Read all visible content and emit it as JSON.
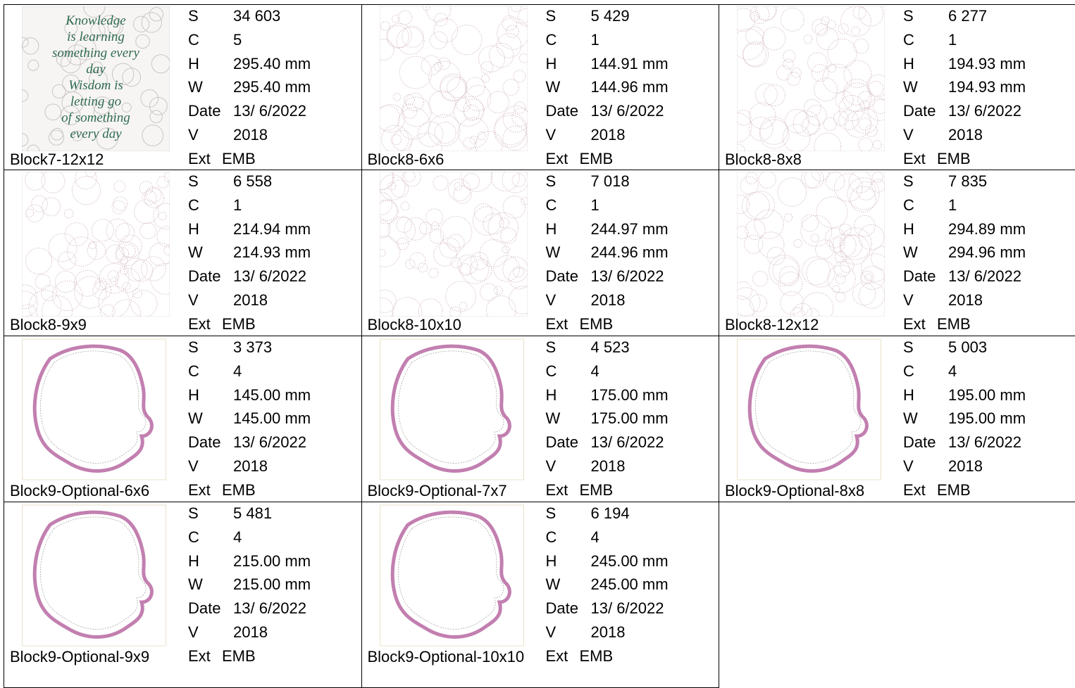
{
  "field_labels": [
    "S",
    "C",
    "H",
    "W",
    "Date",
    "V",
    "Ext"
  ],
  "cells": [
    {
      "name": "Block7-12x12",
      "thumbnail_text": [
        "Knowledge",
        "is learning",
        "something every",
        "day",
        "Wisdom is",
        "letting go",
        "of something",
        "every day"
      ],
      "values": [
        "34 603",
        "5",
        "295.40 mm",
        "295.40 mm",
        "13/ 6/2022",
        "2018",
        "EMB"
      ]
    },
    {
      "name": "Block8-6x6",
      "values": [
        "5 429",
        "1",
        "144.91 mm",
        "144.96 mm",
        "13/ 6/2022",
        "2018",
        "EMB"
      ]
    },
    {
      "name": "Block8-8x8",
      "values": [
        "6 277",
        "1",
        "194.93 mm",
        "194.93 mm",
        "13/ 6/2022",
        "2018",
        "EMB"
      ]
    },
    {
      "name": "Block8-9x9",
      "values": [
        "6 558",
        "1",
        "214.94 mm",
        "214.93 mm",
        "13/ 6/2022",
        "2018",
        "EMB"
      ]
    },
    {
      "name": "Block8-10x10",
      "values": [
        "7 018",
        "1",
        "244.97 mm",
        "244.96 mm",
        "13/ 6/2022",
        "2018",
        "EMB"
      ]
    },
    {
      "name": "Block8-12x12",
      "values": [
        "7 835",
        "1",
        "294.89 mm",
        "294.96 mm",
        "13/ 6/2022",
        "2018",
        "EMB"
      ]
    },
    {
      "name": "Block9-Optional-6x6",
      "values": [
        "3 373",
        "4",
        "145.00 mm",
        "145.00 mm",
        "13/ 6/2022",
        "2018",
        "EMB"
      ]
    },
    {
      "name": "Block9-Optional-7x7",
      "values": [
        "4 523",
        "4",
        "175.00 mm",
        "175.00 mm",
        "13/ 6/2022",
        "2018",
        "EMB"
      ]
    },
    {
      "name": "Block9-Optional-8x8",
      "values": [
        "5 003",
        "4",
        "195.00 mm",
        "195.00 mm",
        "13/ 6/2022",
        "2018",
        "EMB"
      ]
    },
    {
      "name": "Block9-Optional-9x9",
      "values": [
        "5 481",
        "4",
        "215.00 mm",
        "215.00 mm",
        "13/ 6/2022",
        "2018",
        "EMB"
      ]
    },
    {
      "name": "Block9-Optional-10x10",
      "values": [
        "6 194",
        "4",
        "245.00 mm",
        "245.00 mm",
        "13/ 6/2022",
        "2018",
        "EMB"
      ]
    }
  ]
}
